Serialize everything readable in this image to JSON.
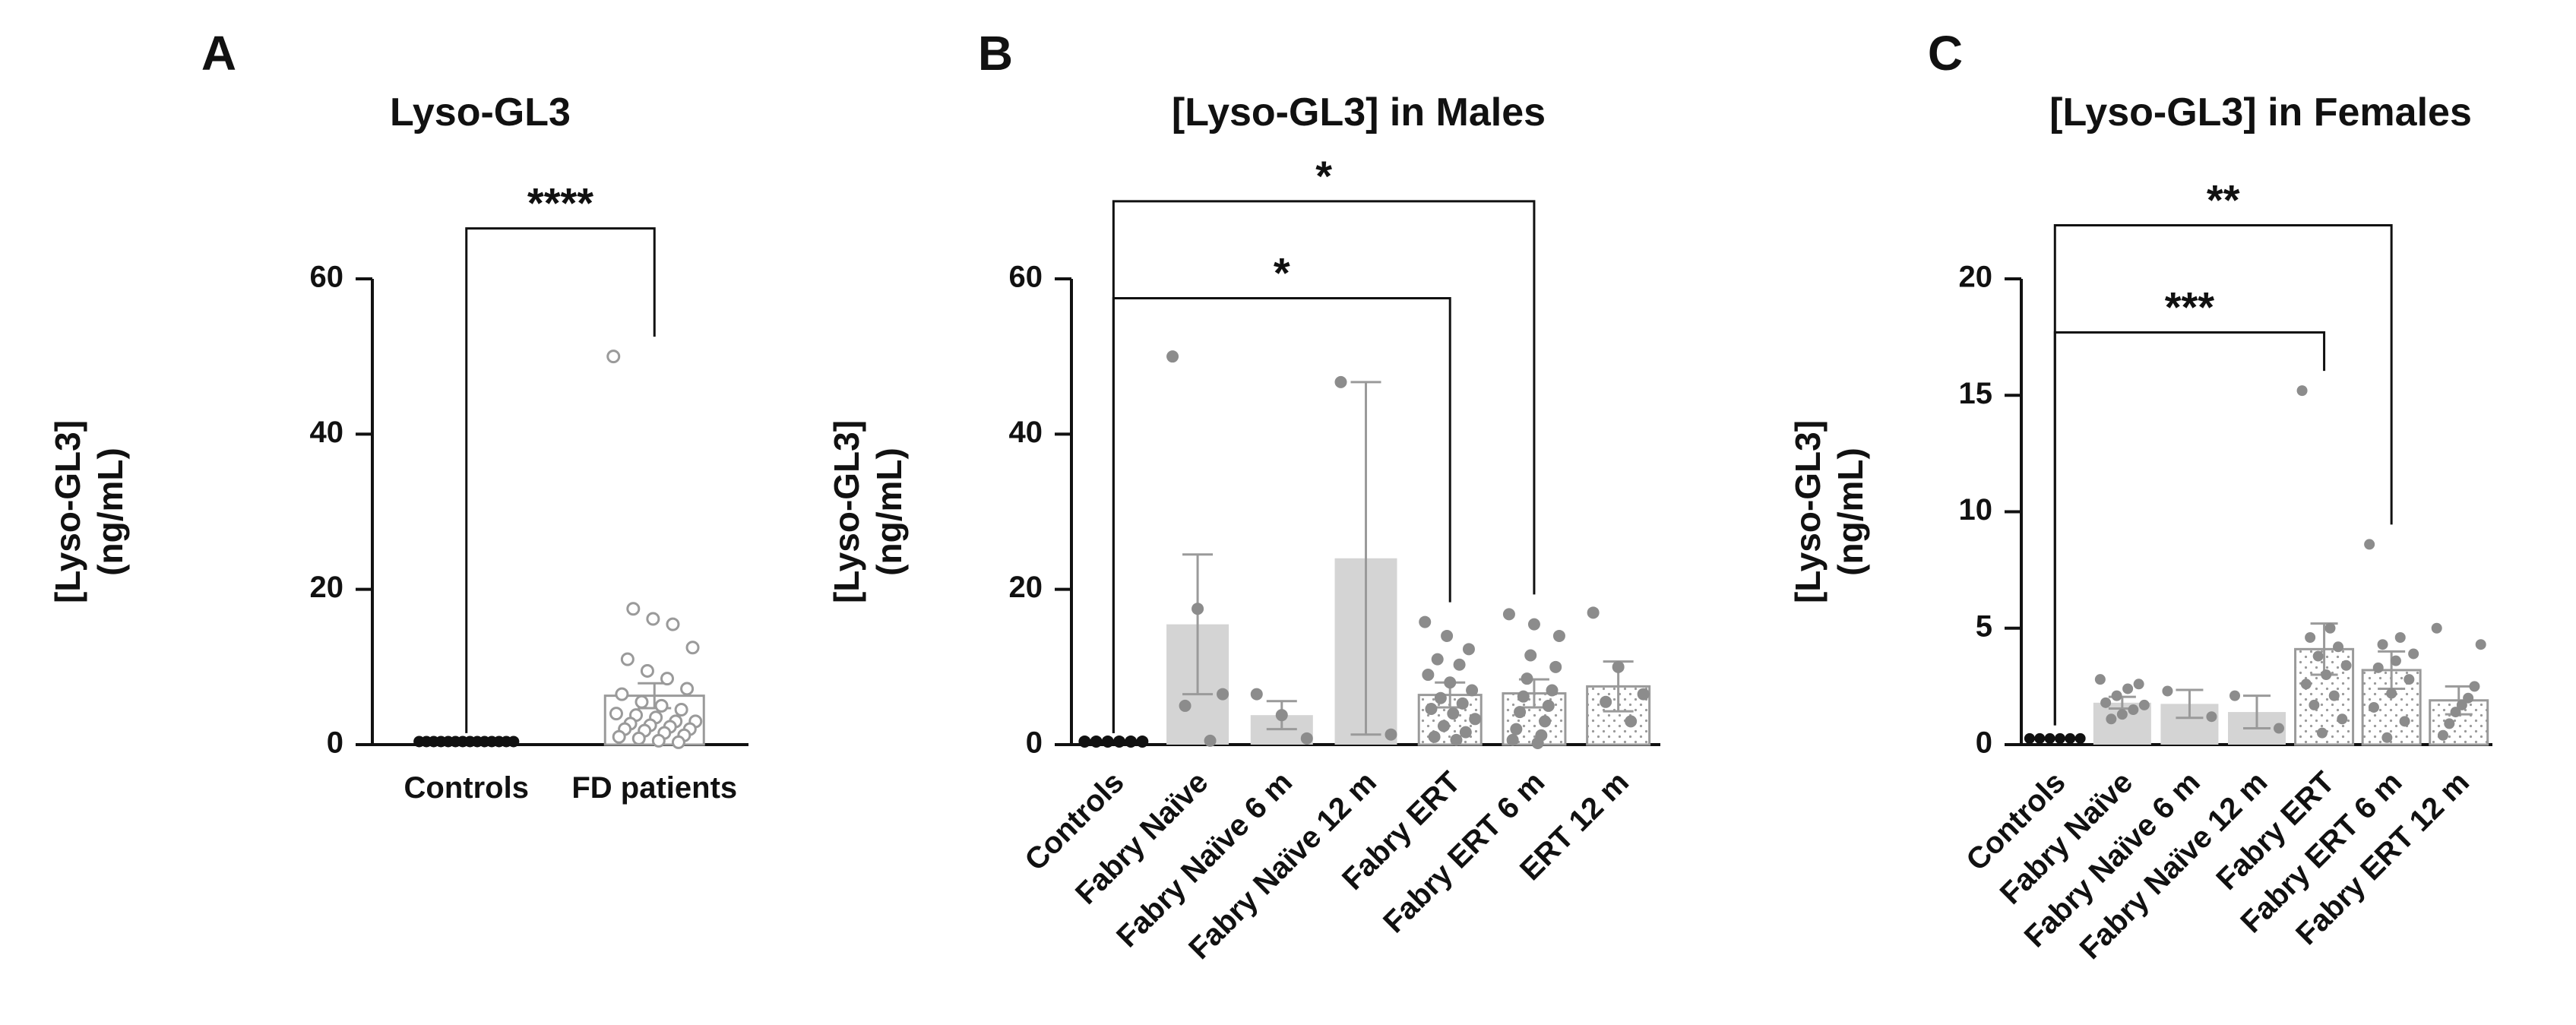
{
  "colors": {
    "axis": "#111111",
    "control_dot": "#111111",
    "bar_fill": "#d4d4d4",
    "bar_open": "#ffffff",
    "bar_edge": "#9a9a9a",
    "point": "#8c8c8c",
    "error": "#9a9a9a",
    "dots": "#9a9a9a"
  },
  "chart_data": [
    {
      "letter": "A",
      "type": "bar",
      "title": "Lyso-GL3",
      "ylabel": [
        "[Lyso-GL3]",
        "(ng/mL)"
      ],
      "xlabel": "",
      "ylim": [
        0,
        60
      ],
      "yticks": [
        0,
        20,
        40,
        60
      ],
      "ytick_labels": [
        "0",
        "20",
        "40",
        "60"
      ],
      "categories": [
        "Controls",
        "FD patients"
      ],
      "series": [
        {
          "name": "Controls",
          "style": "black-dots",
          "mean": 0.2,
          "err": 0,
          "points": [
            0.2,
            0.2,
            0.2,
            0.2,
            0.2,
            0.2,
            0.2,
            0.2,
            0.2,
            0.2,
            0.2,
            0.2,
            0.2,
            0.2
          ]
        },
        {
          "name": "FD patients",
          "style": "open-circles",
          "mean": 6.3,
          "err": 1.6,
          "points": [
            50,
            17.5,
            16.2,
            15.5,
            12.5,
            11,
            9.5,
            8.5,
            7.2,
            6.5,
            5.5,
            5,
            4.5,
            4,
            3.8,
            3.5,
            3,
            3,
            2.7,
            2.5,
            2.3,
            2,
            2,
            1.8,
            1.5,
            1.2,
            1,
            0.8,
            0.5,
            0.3
          ]
        }
      ],
      "significance": [
        {
          "from": 0,
          "to": 1,
          "level": 66.5,
          "label": "****"
        }
      ]
    },
    {
      "letter": "B",
      "type": "bar",
      "title": "[Lyso-GL3] in Males",
      "ylabel": [
        "[Lyso-GL3]",
        "(ng/mL)"
      ],
      "xlabel": "",
      "ylim": [
        0,
        60
      ],
      "yticks": [
        0,
        20,
        40,
        60
      ],
      "ytick_labels": [
        "0",
        "20",
        "40",
        "60"
      ],
      "categories": [
        "Controls",
        "Fabry Naïve",
        "Fabry Naïve 6 m",
        "Fabry Naïve 12 m",
        "Fabry ERT",
        "Fabry ERT 6 m",
        "ERT 12 m"
      ],
      "series": [
        {
          "name": "Controls",
          "style": "black-dots",
          "mean": 0.2,
          "err": 0,
          "points": [
            0.2,
            0.2,
            0.2,
            0.2,
            0.2,
            0.2
          ]
        },
        {
          "name": "Fabry Naïve",
          "style": "gray-bar",
          "mean": 15.5,
          "err": 9,
          "points": [
            50,
            17.5,
            6.5,
            5,
            0.5
          ]
        },
        {
          "name": "Fabry Naïve 6 m",
          "style": "gray-bar",
          "mean": 3.8,
          "err": 1.8,
          "points": [
            6.5,
            3.8,
            0.8
          ]
        },
        {
          "name": "Fabry Naïve 12 m",
          "style": "gray-bar",
          "mean": 24,
          "err": 22.7,
          "points": [
            46.7,
            1.3
          ]
        },
        {
          "name": "Fabry ERT",
          "style": "dotted-bar",
          "mean": 6.4,
          "err": 1.6,
          "points": [
            15.8,
            14,
            12.3,
            11,
            10.3,
            9,
            8,
            7,
            6,
            5.3,
            4.6,
            4,
            3.3,
            2.4,
            1.6,
            1,
            0.6
          ]
        },
        {
          "name": "Fabry ERT 6 m",
          "style": "dotted-bar",
          "mean": 6.6,
          "err": 1.8,
          "points": [
            16.8,
            15.5,
            14,
            11.5,
            10,
            8.5,
            7,
            6.2,
            5,
            4.2,
            3,
            2,
            1.2,
            0.6,
            0.2
          ]
        },
        {
          "name": "ERT 12 m",
          "style": "dotted-bar",
          "mean": 7.5,
          "err": 3.2,
          "points": [
            17,
            10,
            6.5,
            5.5,
            3
          ]
        }
      ],
      "significance": [
        {
          "from": 0,
          "to": 5,
          "level": 70,
          "label": "*"
        },
        {
          "from": 0,
          "to": 4,
          "level": 57.5,
          "label": "*"
        }
      ]
    },
    {
      "letter": "C",
      "type": "bar",
      "title": "[Lyso-GL3] in Females",
      "ylabel": [
        "[Lyso-GL3]",
        "(ng/mL)"
      ],
      "xlabel": "",
      "ylim": [
        0,
        20
      ],
      "yticks": [
        0,
        5,
        10,
        15,
        20
      ],
      "ytick_labels": [
        "0",
        "5",
        "10",
        "15",
        "20"
      ],
      "categories": [
        "Controls",
        "Fabry Naïve",
        "Fabry Naïve 6 m",
        "Fabry Naïve 12 m",
        "Fabry ERT",
        "Fabry ERT 6 m",
        "Fabry ERT 12 m"
      ],
      "series": [
        {
          "name": "Controls",
          "style": "black-dots",
          "mean": 0.2,
          "err": 0,
          "points": [
            0.2,
            0.2,
            0.2,
            0.2,
            0.2,
            0.2
          ]
        },
        {
          "name": "Fabry Naïve",
          "style": "gray-bar",
          "mean": 1.8,
          "err": 0.25,
          "points": [
            2.8,
            2.6,
            2.4,
            2.1,
            1.8,
            1.7,
            1.5,
            1.3,
            1.1
          ]
        },
        {
          "name": "Fabry Naïve 6 m",
          "style": "gray-bar",
          "mean": 1.75,
          "err": 0.6,
          "points": [
            2.3,
            1.2
          ]
        },
        {
          "name": "Fabry Naïve 12 m",
          "style": "gray-bar",
          "mean": 1.4,
          "err": 0.7,
          "points": [
            2.1,
            0.7
          ]
        },
        {
          "name": "Fabry ERT",
          "style": "dotted-bar",
          "mean": 4.1,
          "err": 1.1,
          "points": [
            15.2,
            5,
            4.6,
            4.2,
            3.8,
            3.4,
            3,
            2.6,
            2.1,
            1.7,
            1.1,
            0.5
          ]
        },
        {
          "name": "Fabry ERT 6 m",
          "style": "dotted-bar",
          "mean": 3.2,
          "err": 0.8,
          "points": [
            8.6,
            4.6,
            4.3,
            3.9,
            3.6,
            3.3,
            2.8,
            2.2,
            1.6,
            1,
            0.3
          ]
        },
        {
          "name": "Fabry ERT 12 m",
          "style": "dotted-bar",
          "mean": 1.9,
          "err": 0.6,
          "points": [
            5,
            4.3,
            2.5,
            2,
            1.7,
            1.4,
            0.9,
            0.4
          ]
        }
      ],
      "significance": [
        {
          "from": 0,
          "to": 5,
          "level": 22.3,
          "label": "**"
        },
        {
          "from": 0,
          "to": 4,
          "level": 17.7,
          "label": "***"
        }
      ]
    }
  ]
}
